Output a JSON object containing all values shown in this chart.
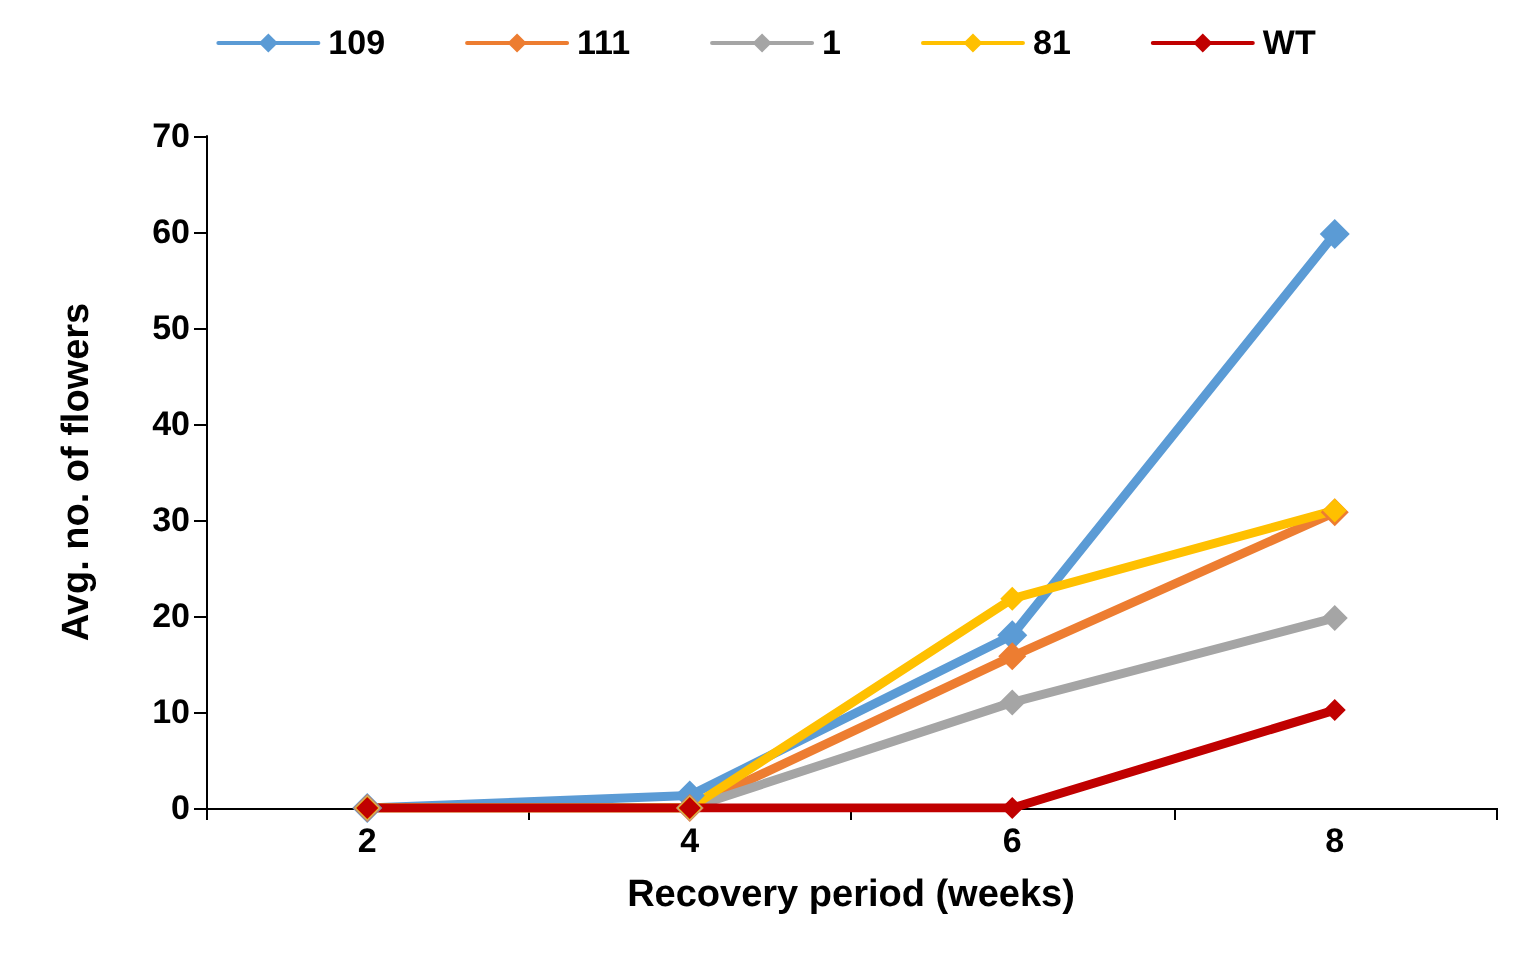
{
  "chart_data": {
    "type": "line",
    "xlabel": "Recovery period (weeks)",
    "ylabel": "Avg. no. of flowers",
    "categories": [
      "2",
      "4",
      "6",
      "8"
    ],
    "series": [
      {
        "name": "109",
        "color": "#5b9bd5",
        "values": [
          0,
          1.3,
          18,
          59.8
        ]
      },
      {
        "name": "111",
        "color": "#ed7d31",
        "values": [
          0,
          0,
          15.8,
          30.8
        ]
      },
      {
        "name": "1",
        "color": "#a5a5a5",
        "values": [
          0,
          0,
          11,
          19.8
        ]
      },
      {
        "name": "81",
        "color": "#ffc000",
        "values": [
          0,
          0,
          21.8,
          31
        ]
      },
      {
        "name": "WT",
        "color": "#c00000",
        "values": [
          0,
          0,
          0,
          10.2
        ]
      }
    ],
    "ylim": [
      0,
      70
    ],
    "yticks": [
      0,
      10,
      20,
      30,
      40,
      50,
      60,
      70
    ],
    "grid": false,
    "legend": "top",
    "marker": "diamond",
    "line_style": "solid"
  }
}
